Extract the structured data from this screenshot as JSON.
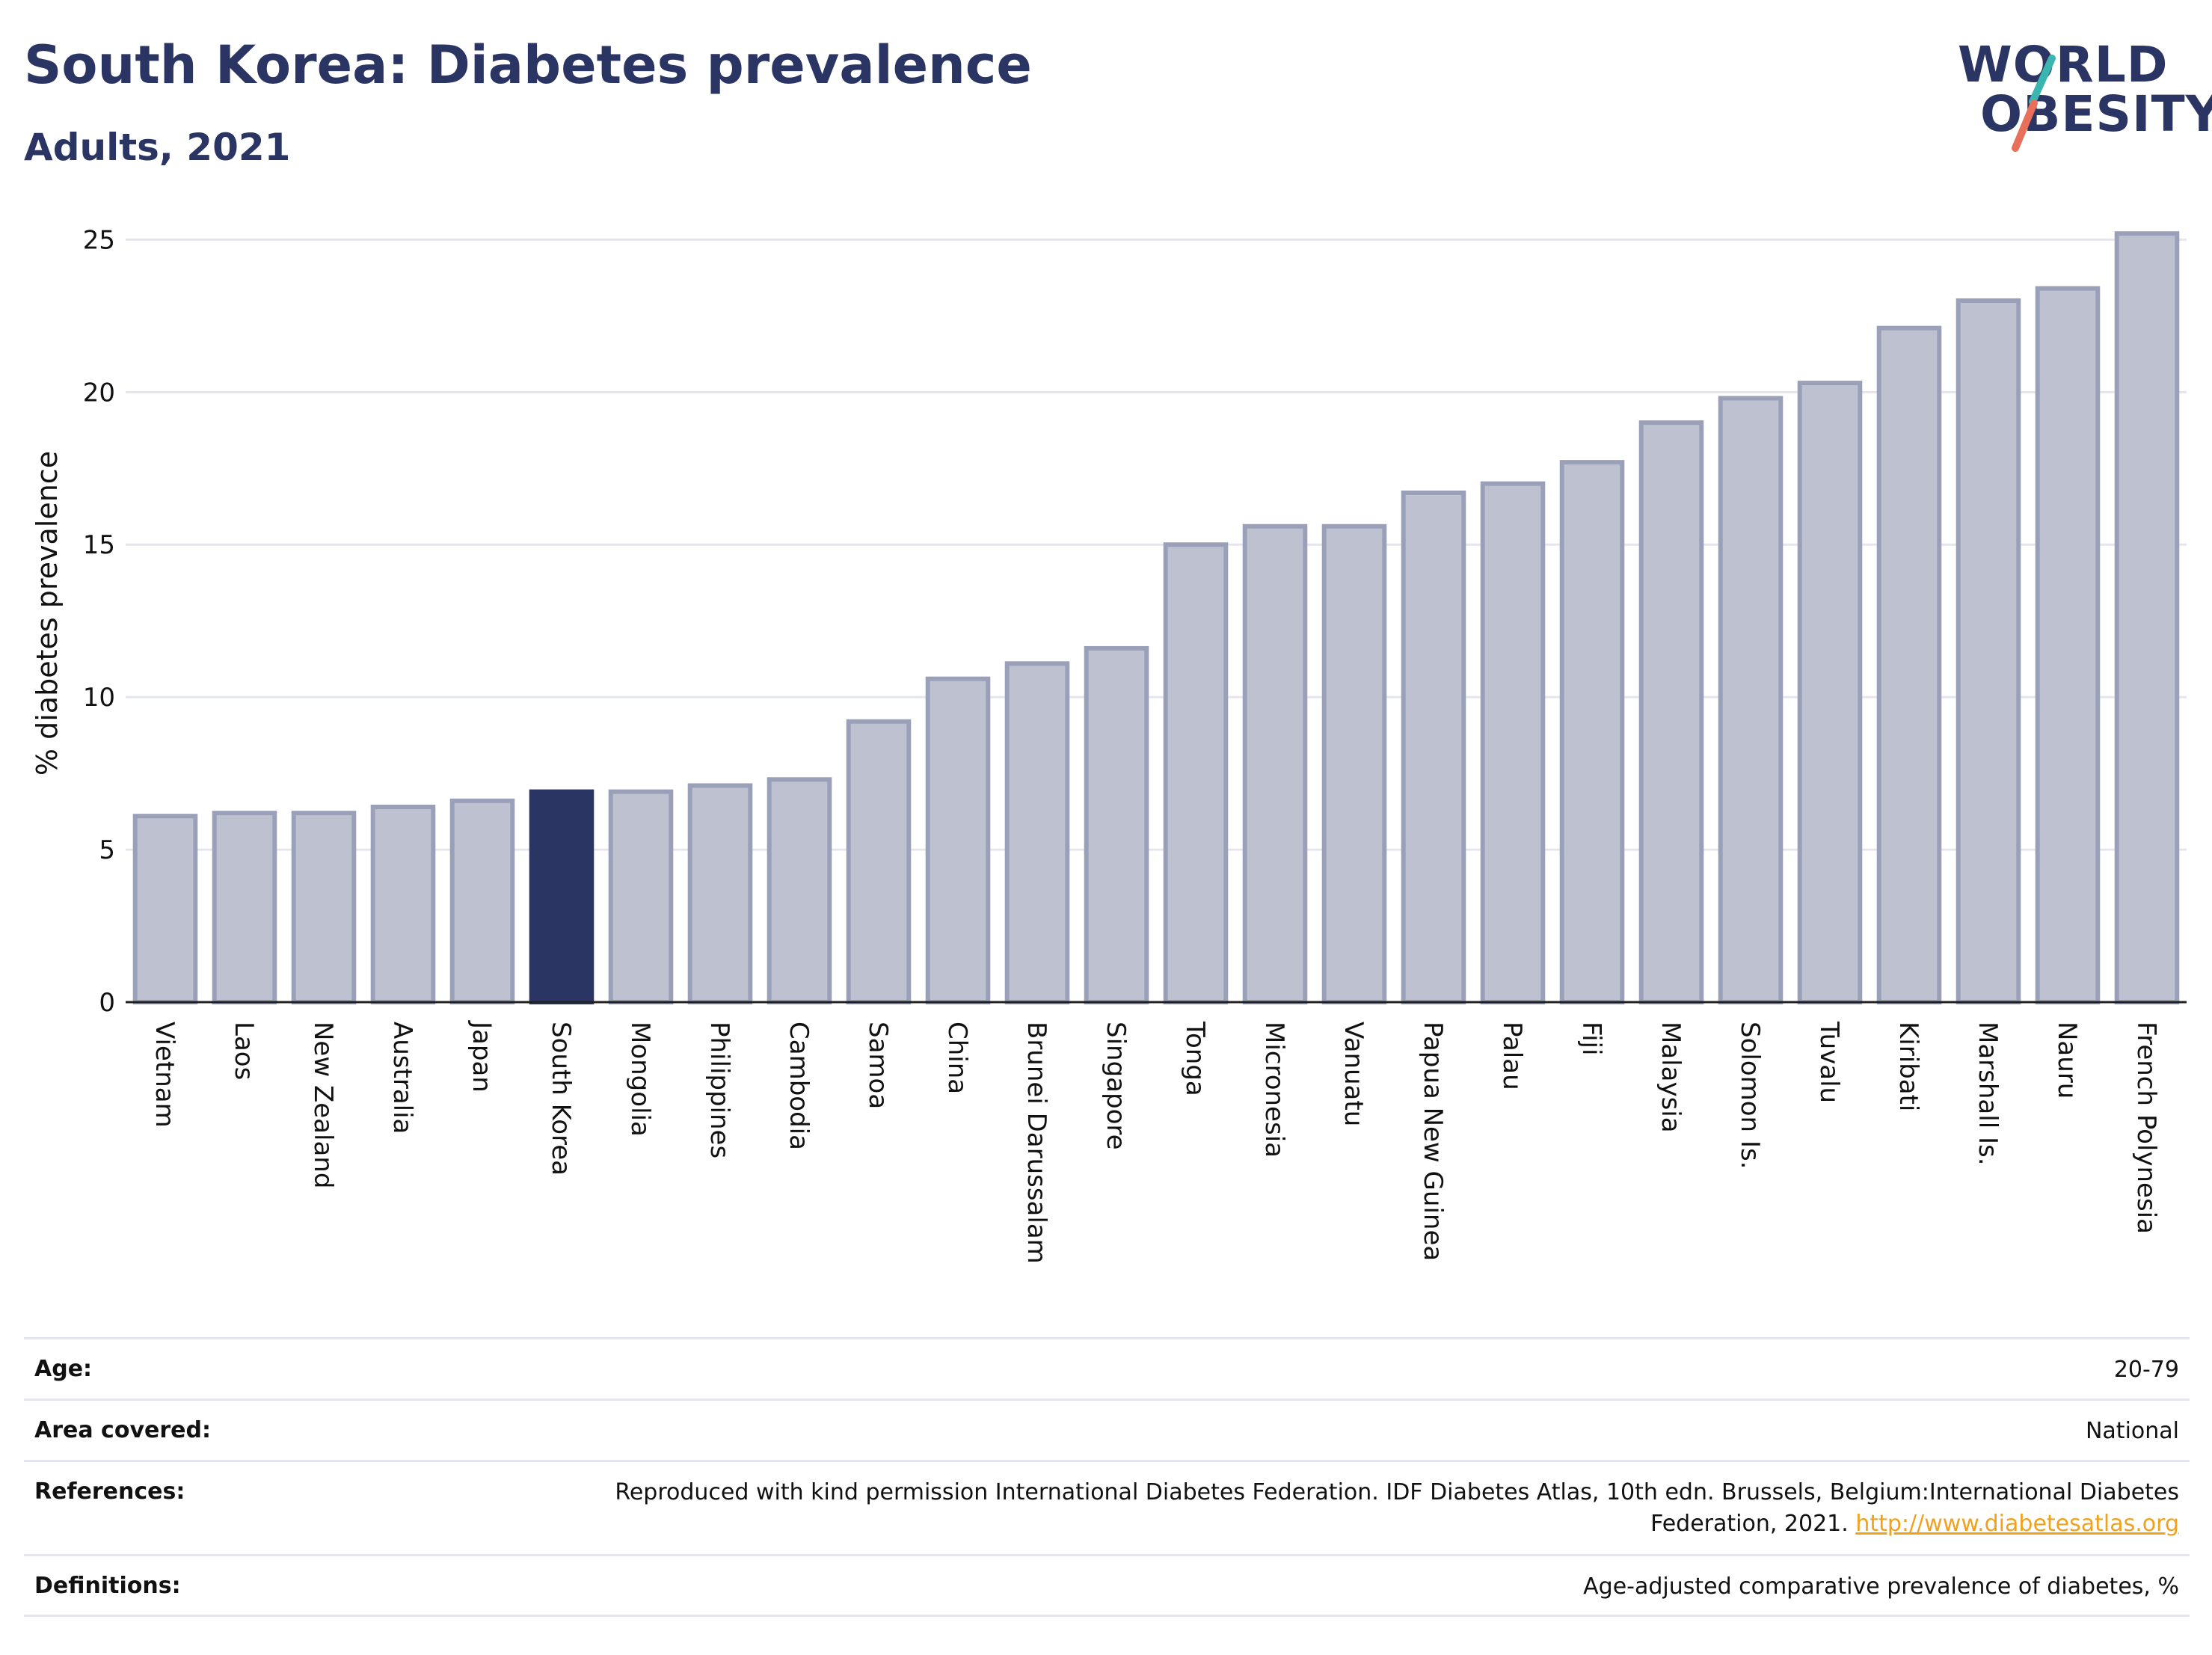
{
  "header": {
    "title": "South Korea: Diabetes prevalence",
    "subtitle": "Adults, 2021"
  },
  "logo": {
    "line1": "WORLD",
    "line2": "OBESITY",
    "accent_colors": [
      "#3ab5b0",
      "#e8705a"
    ]
  },
  "colors": {
    "bar": "#bec2d0",
    "bar_stroke": "#9aa0b8",
    "highlight": "#2b3563",
    "grid": "#e4e6ef",
    "axis": "#222222",
    "link": "#f0a21e"
  },
  "chart_data": {
    "type": "bar",
    "ylabel": "% diabetes prevalence",
    "ylim": [
      0,
      25.5
    ],
    "yticks": [
      0,
      5,
      10,
      15,
      20,
      25
    ],
    "grid": true,
    "highlight": "South Korea",
    "categories": [
      "Vietnam",
      "Laos",
      "New Zealand",
      "Australia",
      "Japan",
      "South Korea",
      "Mongolia",
      "Philippines",
      "Cambodia",
      "Samoa",
      "China",
      "Brunei Darussalam",
      "Singapore",
      "Tonga",
      "Micronesia",
      "Vanuatu",
      "Papua New Guinea",
      "Palau",
      "Fiji",
      "Malaysia",
      "Solomon Is.",
      "Tuvalu",
      "Kiribati",
      "Marshall Is.",
      "Nauru",
      "French Polynesia"
    ],
    "values": [
      6.1,
      6.2,
      6.2,
      6.4,
      6.6,
      6.9,
      6.9,
      7.1,
      7.3,
      9.2,
      10.6,
      11.1,
      11.6,
      15.0,
      15.6,
      15.6,
      16.7,
      17.0,
      17.7,
      19.0,
      19.8,
      20.3,
      22.1,
      23.0,
      23.4,
      25.2
    ]
  },
  "info": {
    "age": {
      "label": "Age:",
      "value": "20-79"
    },
    "area": {
      "label": "Area covered:",
      "value": "National"
    },
    "references": {
      "label": "References:",
      "text": "Reproduced with kind permission International Diabetes Federation.  IDF Diabetes Atlas, 10th edn. Brussels, Belgium:International Diabetes Federation, 2021.",
      "link": "http://www.diabetesatlas.org"
    },
    "definitions": {
      "label": "Definitions:",
      "value": "Age-adjusted comparative prevalence of diabetes, %"
    }
  }
}
